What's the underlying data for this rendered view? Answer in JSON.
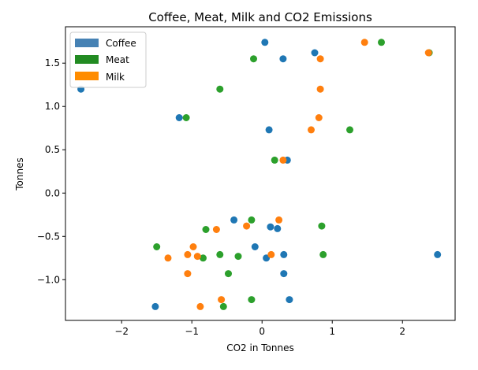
{
  "chart_data": {
    "type": "scatter",
    "title": "Coffee, Meat, Milk and CO2 Emissions",
    "xlabel": "CO2 in Tonnes",
    "ylabel": "Tonnes",
    "xlim": [
      -2.8,
      2.75
    ],
    "ylim": [
      -1.47,
      1.92
    ],
    "xticks": [
      -2,
      -1,
      0,
      1,
      2
    ],
    "xtick_labels": [
      "−2",
      "−1",
      "0",
      "1",
      "2"
    ],
    "yticks": [
      -1.0,
      -0.5,
      0.0,
      0.5,
      1.0,
      1.5
    ],
    "ytick_labels": [
      "−1.0",
      "−0.5",
      "0.0",
      "0.5",
      "1.0",
      "1.5"
    ],
    "grid": false,
    "legend_position": "top-left",
    "series": [
      {
        "name": "Coffee",
        "color": "#1f77b4",
        "legend_color": "#4682b4",
        "points": [
          {
            "x": -2.58,
            "y": 1.2
          },
          {
            "x": -1.18,
            "y": 0.87
          },
          {
            "x": 0.04,
            "y": 1.74
          },
          {
            "x": 0.3,
            "y": 1.55
          },
          {
            "x": 0.75,
            "y": 1.62
          },
          {
            "x": 0.1,
            "y": 0.73
          },
          {
            "x": 0.36,
            "y": 0.38
          },
          {
            "x": -0.4,
            "y": -0.31
          },
          {
            "x": 0.12,
            "y": -0.39
          },
          {
            "x": 0.22,
            "y": -0.41
          },
          {
            "x": -0.1,
            "y": -0.62
          },
          {
            "x": 0.06,
            "y": -0.75
          },
          {
            "x": 0.31,
            "y": -0.71
          },
          {
            "x": 0.31,
            "y": -0.93
          },
          {
            "x": 0.39,
            "y": -1.23
          },
          {
            "x": -1.52,
            "y": -1.31
          },
          {
            "x": 2.5,
            "y": -0.71
          }
        ]
      },
      {
        "name": "Meat",
        "color": "#2ca02c",
        "legend_color": "#228b22",
        "points": [
          {
            "x": -0.12,
            "y": 1.55
          },
          {
            "x": 1.7,
            "y": 1.74
          },
          {
            "x": 2.38,
            "y": 1.62
          },
          {
            "x": -0.6,
            "y": 1.2
          },
          {
            "x": -1.08,
            "y": 0.87
          },
          {
            "x": 1.25,
            "y": 0.73
          },
          {
            "x": 0.18,
            "y": 0.38
          },
          {
            "x": -0.15,
            "y": -0.31
          },
          {
            "x": -0.8,
            "y": -0.42
          },
          {
            "x": 0.85,
            "y": -0.38
          },
          {
            "x": -1.5,
            "y": -0.62
          },
          {
            "x": -0.84,
            "y": -0.75
          },
          {
            "x": -0.6,
            "y": -0.71
          },
          {
            "x": -0.34,
            "y": -0.73
          },
          {
            "x": 0.87,
            "y": -0.71
          },
          {
            "x": -0.48,
            "y": -0.93
          },
          {
            "x": -0.15,
            "y": -1.23
          },
          {
            "x": -0.55,
            "y": -1.31
          }
        ]
      },
      {
        "name": "Milk",
        "color": "#ff7f0e",
        "legend_color": "#ff8c00",
        "points": [
          {
            "x": 1.46,
            "y": 1.74
          },
          {
            "x": 0.83,
            "y": 1.55
          },
          {
            "x": 2.37,
            "y": 1.62
          },
          {
            "x": 0.83,
            "y": 1.2
          },
          {
            "x": 0.81,
            "y": 0.87
          },
          {
            "x": 0.7,
            "y": 0.73
          },
          {
            "x": 0.3,
            "y": 0.38
          },
          {
            "x": 0.24,
            "y": -0.31
          },
          {
            "x": -0.22,
            "y": -0.38
          },
          {
            "x": -0.65,
            "y": -0.42
          },
          {
            "x": -0.98,
            "y": -0.62
          },
          {
            "x": -1.34,
            "y": -0.75
          },
          {
            "x": -1.06,
            "y": -0.71
          },
          {
            "x": -0.92,
            "y": -0.73
          },
          {
            "x": 0.13,
            "y": -0.71
          },
          {
            "x": -1.06,
            "y": -0.93
          },
          {
            "x": -0.58,
            "y": -1.23
          },
          {
            "x": -0.88,
            "y": -1.31
          }
        ]
      }
    ]
  }
}
